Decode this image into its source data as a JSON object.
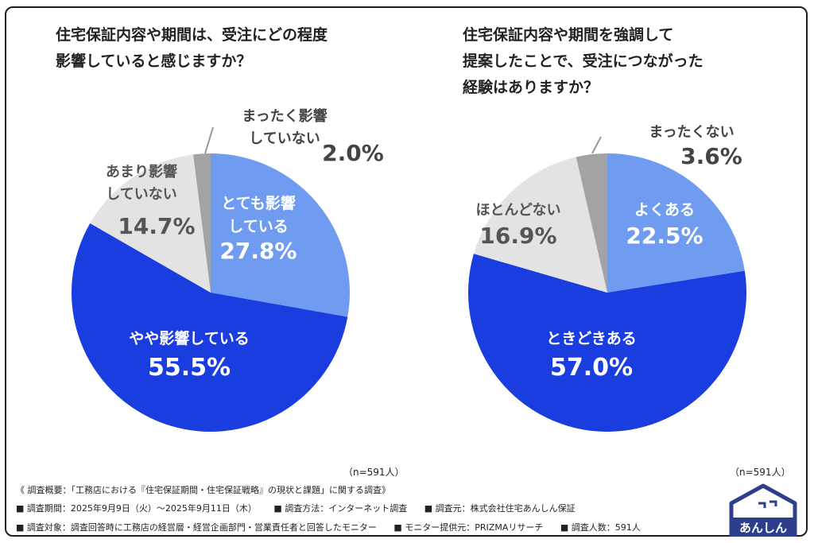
{
  "questions": {
    "q1_line1": "住宅保証内容や期間は、受注にどの程度",
    "q1_line2": "影響していると感じますか？",
    "q2_line1": "住宅保証内容や期間を強調して",
    "q2_line2": "提案したことで、受注につながった",
    "q2_line3": "経験はありますか？"
  },
  "chart_data": [
    {
      "type": "pie",
      "title": "住宅保証内容や期間は、受注にどの程度影響していると感じますか？",
      "sample": "（n=591人）",
      "slices": [
        {
          "label_lines": [
            "とても影響",
            "している"
          ],
          "value": 27.8,
          "pct": "27.8%",
          "color": "#6f9cf0"
        },
        {
          "label_lines": [
            "やや影響している"
          ],
          "value": 55.5,
          "pct": "55.5%",
          "color": "#1a3de0"
        },
        {
          "label_lines": [
            "あまり影響",
            "していない"
          ],
          "value": 14.7,
          "pct": "14.7%",
          "color": "#e3e3e3"
        },
        {
          "label_lines": [
            "まったく影響",
            "していない"
          ],
          "value": 2.0,
          "pct": "2.0%",
          "color": "#a3a3a3"
        }
      ]
    },
    {
      "type": "pie",
      "title": "住宅保証内容や期間を強調して提案したことで、受注につながった経験はありますか？",
      "sample": "（n=591人）",
      "slices": [
        {
          "label_lines": [
            "よくある"
          ],
          "value": 22.5,
          "pct": "22.5%",
          "color": "#6f9cf0"
        },
        {
          "label_lines": [
            "ときどきある"
          ],
          "value": 57.0,
          "pct": "57.0%",
          "color": "#1a3de0"
        },
        {
          "label_lines": [
            "ほとんどない"
          ],
          "value": 16.9,
          "pct": "16.9%",
          "color": "#e3e3e3"
        },
        {
          "label_lines": [
            "まったくない"
          ],
          "value": 3.6,
          "pct": "3.6%",
          "color": "#a3a3a3"
        }
      ]
    }
  ],
  "footer": {
    "overview": "《 調査概要：「工務店における『住宅保証期間・住宅保証戦略』の現状と課題」に関する調査》",
    "period": "■ 調査期間：2025年9月9日（火）〜2025年9月11日（木）",
    "method": "■ 調査方法：インターネット調査",
    "org": "■ 調査元：株式会社住宅あんしん保証",
    "target": "■ 調査対象：調査回答時に工務店の経営層・経営企画部門・営業責任者と回答したモニター",
    "provider": "■ モニター提供元：PRIZMAリサーチ",
    "count": "■ 調査人数：591人"
  },
  "logo": {
    "text": "あんしん",
    "color": "#2d3f8c"
  }
}
